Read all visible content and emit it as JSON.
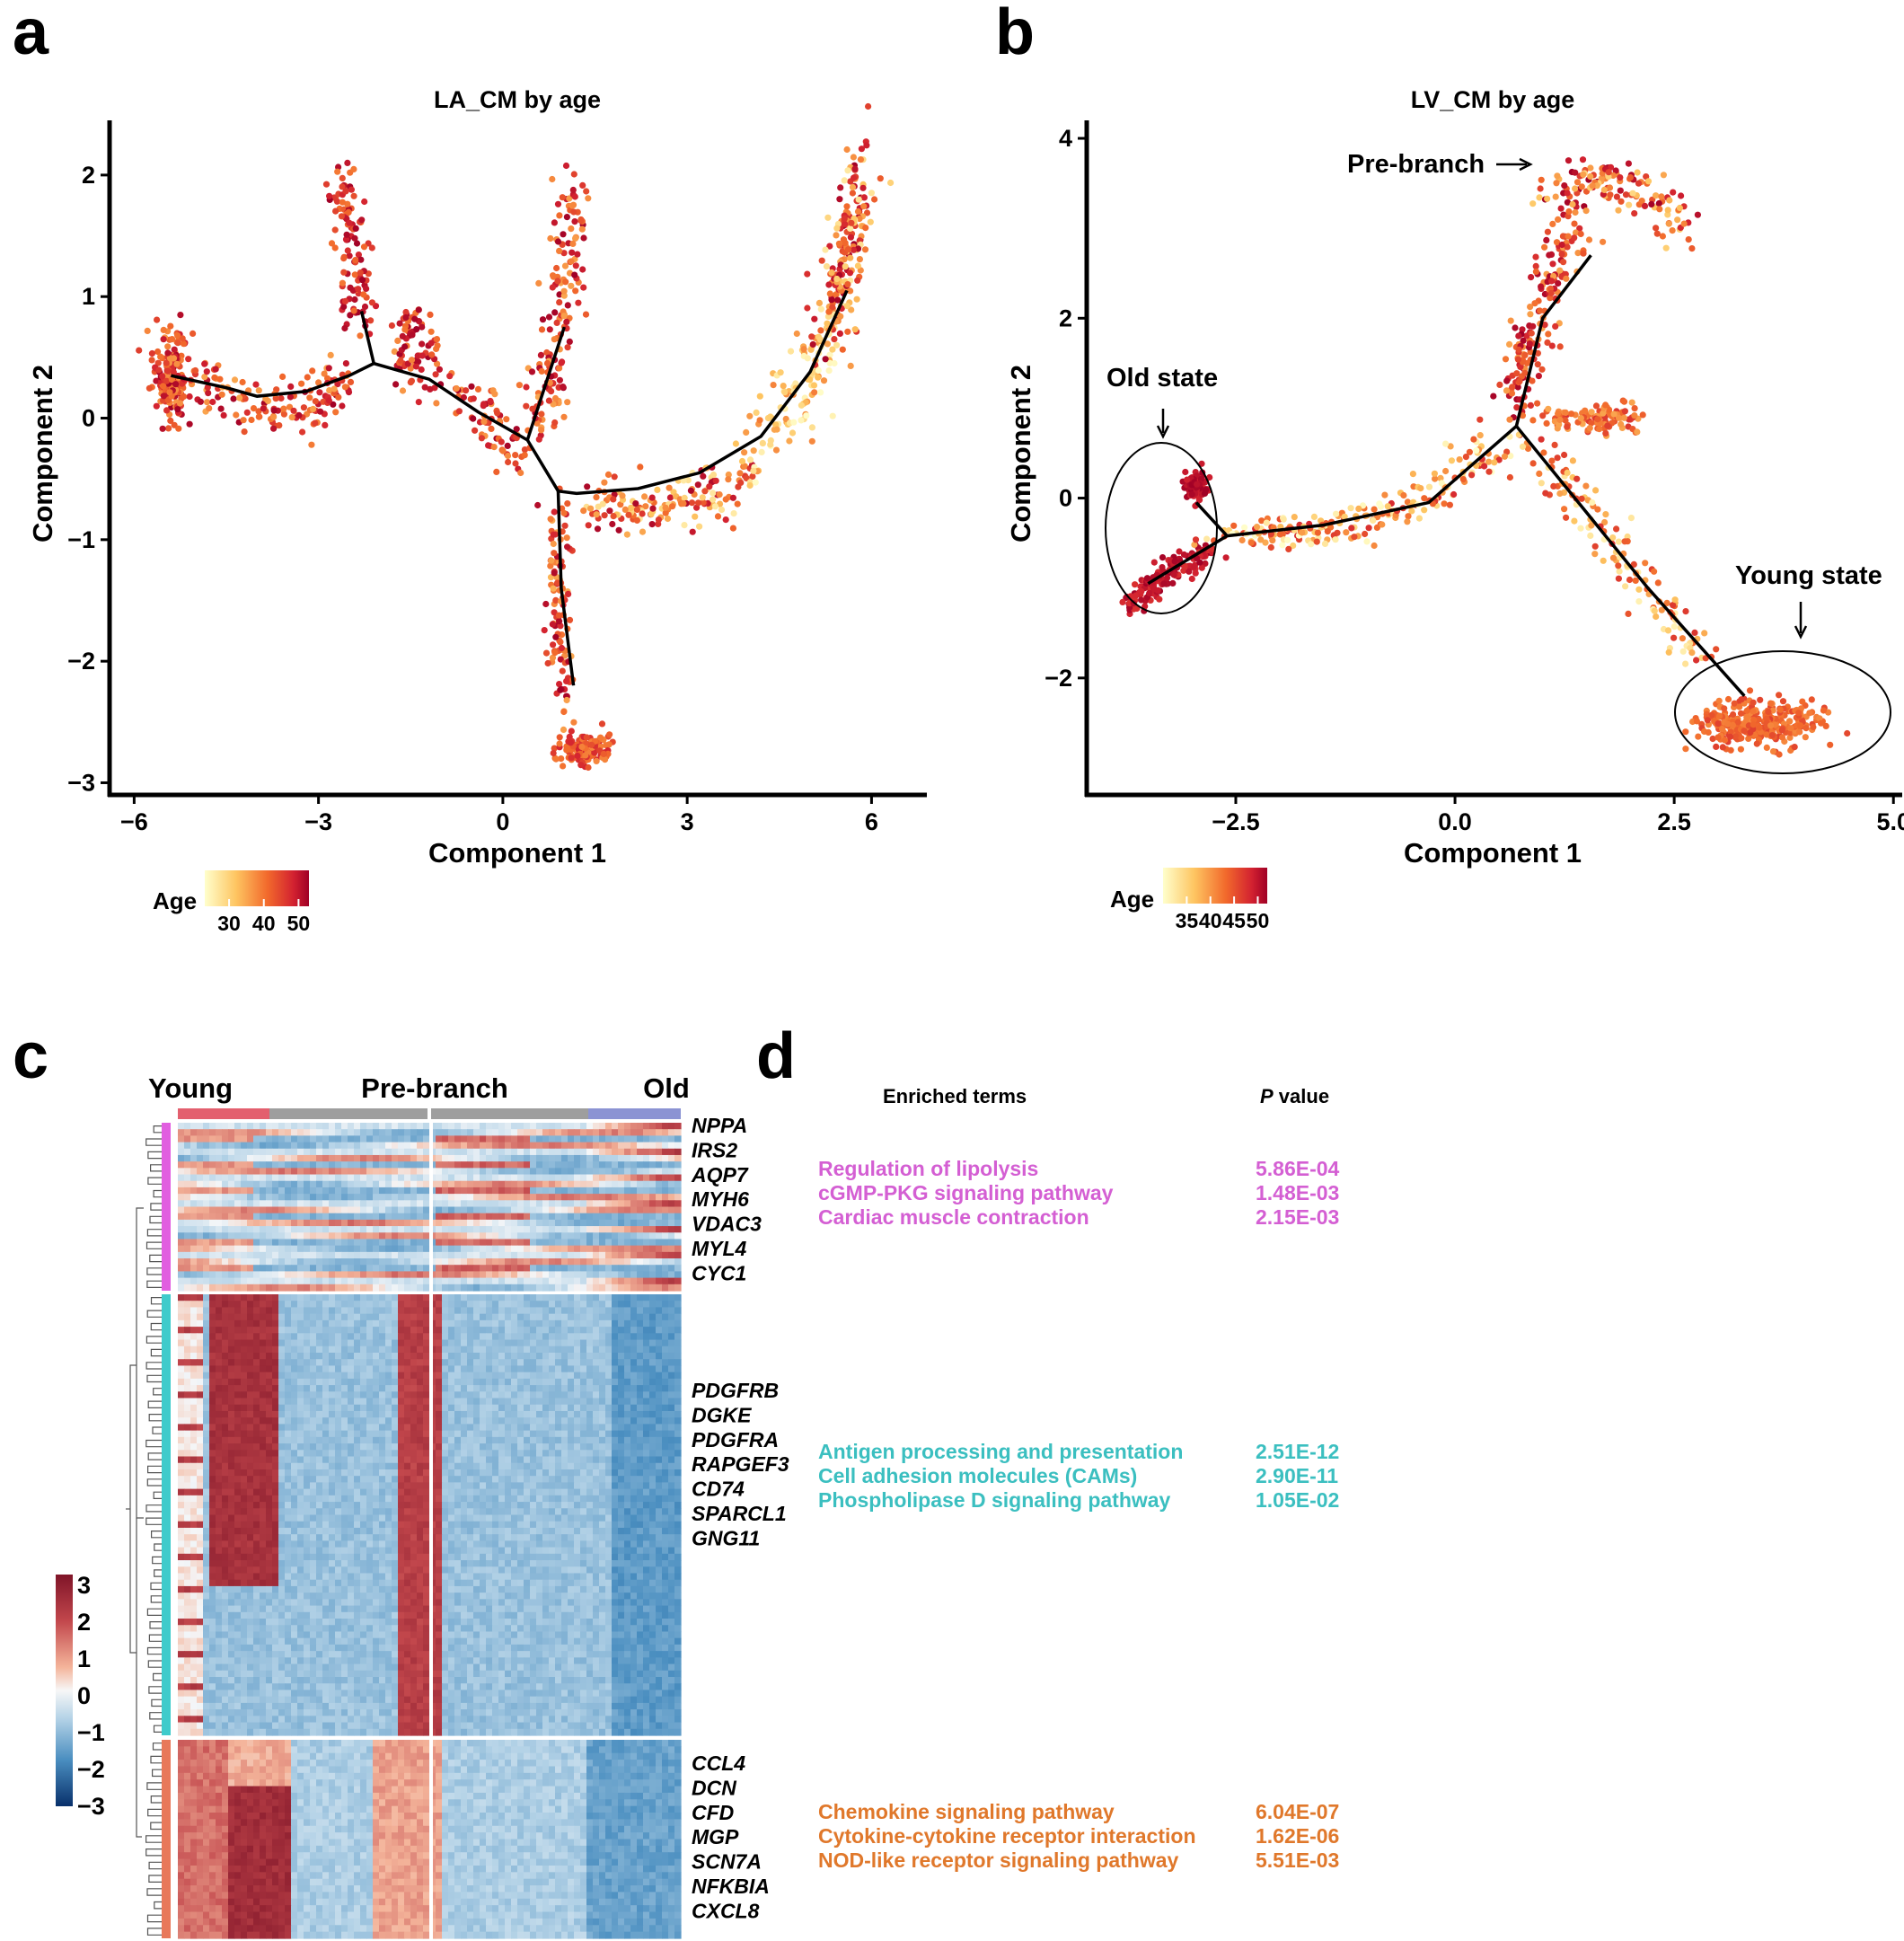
{
  "panels": {
    "a": "a",
    "b": "b",
    "c": "c",
    "d": "d"
  },
  "chart_data": [
    {
      "type": "scatter",
      "title": "LA_CM by age",
      "xlabel": "Component 1",
      "ylabel": "Component 2",
      "xlim": [
        -6.4,
        6.9
      ],
      "ylim": [
        -3.1,
        2.45
      ],
      "xticks": [
        -6,
        -3,
        0,
        3,
        6
      ],
      "xtick_labels": [
        "−6",
        "−3",
        "0",
        "3",
        "6"
      ],
      "yticks": [
        -3,
        -2,
        -1,
        0,
        1,
        2
      ],
      "ytick_labels": [
        "−3",
        "−2",
        "−1",
        "0",
        "1",
        "2"
      ],
      "legend_title": "Age",
      "legend_ticks": [
        30,
        40,
        50
      ],
      "legend_tick_labels": [
        "30",
        "40",
        "50"
      ],
      "legend_range": [
        23,
        53
      ],
      "trajectory": [
        [
          [
            -5.4,
            0.35
          ],
          [
            -4.5,
            0.25
          ],
          [
            -4.0,
            0.18
          ],
          [
            -3.2,
            0.22
          ],
          [
            -2.5,
            0.35
          ],
          [
            -2.1,
            0.45
          ],
          [
            -1.2,
            0.32
          ],
          [
            -0.4,
            0.05
          ],
          [
            0.4,
            -0.18
          ],
          [
            0.9,
            -0.6
          ],
          [
            1.2,
            -0.62
          ],
          [
            2.2,
            -0.58
          ],
          [
            3.2,
            -0.45
          ],
          [
            4.2,
            -0.15
          ],
          [
            5.0,
            0.38
          ],
          [
            5.6,
            1.05
          ]
        ],
        [
          [
            -2.1,
            0.45
          ],
          [
            -2.3,
            0.88
          ]
        ],
        [
          [
            0.4,
            -0.18
          ],
          [
            1.0,
            0.75
          ]
        ],
        [
          [
            0.9,
            -0.6
          ],
          [
            0.95,
            -1.4
          ],
          [
            1.15,
            -2.2
          ]
        ]
      ]
    },
    {
      "type": "scatter",
      "title": "LV_CM by age",
      "xlabel": "Component 1",
      "ylabel": "Component 2",
      "xlim": [
        -4.2,
        5.1
      ],
      "ylim": [
        -3.3,
        4.2
      ],
      "xticks": [
        -2.5,
        0.0,
        2.5,
        5.0
      ],
      "xtick_labels": [
        "−2.5",
        "0.0",
        "2.5",
        "5.0"
      ],
      "yticks": [
        -2,
        0,
        2,
        4
      ],
      "ytick_labels": [
        "−2",
        "0",
        "2",
        "4"
      ],
      "legend_title": "Age",
      "legend_ticks": [
        35,
        40,
        45,
        50
      ],
      "legend_tick_labels": [
        "35",
        "40",
        "45",
        "50"
      ],
      "legend_range": [
        30,
        52
      ],
      "annotations": [
        "Pre-branch",
        "Old state",
        "Young state"
      ],
      "trajectory": [
        [
          [
            -2.6,
            -0.42
          ],
          [
            -1.5,
            -0.3
          ],
          [
            -0.3,
            -0.05
          ],
          [
            0.7,
            0.8
          ]
        ],
        [
          [
            0.7,
            0.8
          ],
          [
            1.0,
            2.0
          ],
          [
            1.55,
            2.7
          ]
        ],
        [
          [
            0.7,
            0.8
          ],
          [
            2.2,
            -1.0
          ],
          [
            3.3,
            -2.2
          ]
        ],
        [
          [
            -2.6,
            -0.42
          ],
          [
            -2.95,
            -0.05
          ]
        ],
        [
          [
            -2.6,
            -0.42
          ],
          [
            -3.5,
            -0.95
          ]
        ]
      ]
    },
    {
      "type": "heatmap",
      "column_groups": [
        "Young",
        "Pre-branch",
        "Old"
      ],
      "colorbar_ticks": [
        3,
        2,
        1,
        0,
        -1,
        -2,
        -3
      ],
      "colorbar_tick_labels": [
        "3",
        "2",
        "1",
        "0",
        "−1",
        "−2",
        "−3"
      ],
      "clusters": [
        {
          "color": "#e15ee0",
          "genes": [
            "NPPA",
            "IRS2",
            "AQP7",
            "MYH6",
            "VDAC3",
            "MYL4",
            "CYC1"
          ]
        },
        {
          "color": "#3fcbcb",
          "genes": [
            "PDGFRB",
            "DGKE",
            "PDGFRA",
            "RAPGEF3",
            "CD74",
            "SPARCL1",
            "GNG11"
          ]
        },
        {
          "color": "#e8785a",
          "genes": [
            "CCL4",
            "DCN",
            "CFD",
            "MGP",
            "SCN7A",
            "NFKBIA",
            "CXCL8"
          ]
        }
      ]
    }
  ],
  "enrichment": {
    "header_terms": "Enriched terms",
    "header_p_italic": "P",
    "header_p_rest": " value",
    "groups": [
      {
        "color": "#d45fd3",
        "rows": [
          {
            "term": "Regulation of lipolysis",
            "p": "5.86E-04"
          },
          {
            "term": "cGMP-PKG signaling pathway",
            "p": "1.48E-03"
          },
          {
            "term": "Cardiac muscle contraction",
            "p": "2.15E-03"
          }
        ]
      },
      {
        "color": "#3bbfc0",
        "rows": [
          {
            "term": "Antigen processing and presentation",
            "p": "2.51E-12"
          },
          {
            "term": "Cell adhesion molecules (CAMs)",
            "p": "2.90E-11"
          },
          {
            "term": "Phospholipase D signaling pathway",
            "p": "1.05E-02"
          }
        ]
      },
      {
        "color": "#e0782b",
        "rows": [
          {
            "term": "Chemokine signaling pathway",
            "p": "6.04E-07"
          },
          {
            "term": "Cytokine-cytokine receptor interaction",
            "p": "1.62E-06"
          },
          {
            "term": "NOD-like receptor signaling pathway",
            "p": "5.51E-03"
          }
        ]
      }
    ]
  }
}
